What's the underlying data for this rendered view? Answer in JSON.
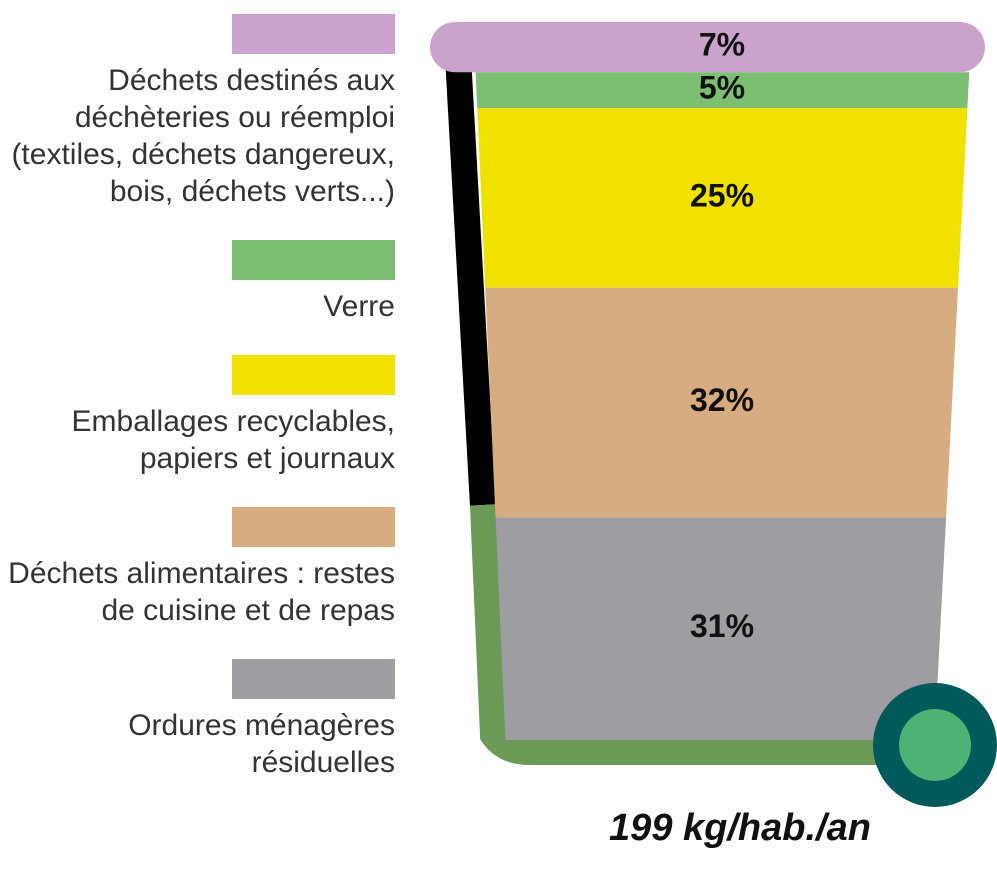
{
  "chart_data": {
    "type": "bin",
    "categories": [
      "Déchets destinés aux déchèteries ou réemploi (textiles, déchets dangereux, bois, déchets verts...)",
      "Verre",
      "Emballages recyclables, papiers et journaux",
      "Déchets alimentaires : restes de cuisine et de repas",
      "Ordures ménagères résiduelles"
    ],
    "values": [
      7,
      5,
      25,
      32,
      31
    ],
    "value_labels": [
      "7%",
      "5%",
      "25%",
      "32%",
      "31%"
    ],
    "colors": [
      "#c9a3cc",
      "#7dbf72",
      "#f0e100",
      "#d6ac80",
      "#9d9da2"
    ],
    "annotation": "199 kg/hab./an"
  }
}
